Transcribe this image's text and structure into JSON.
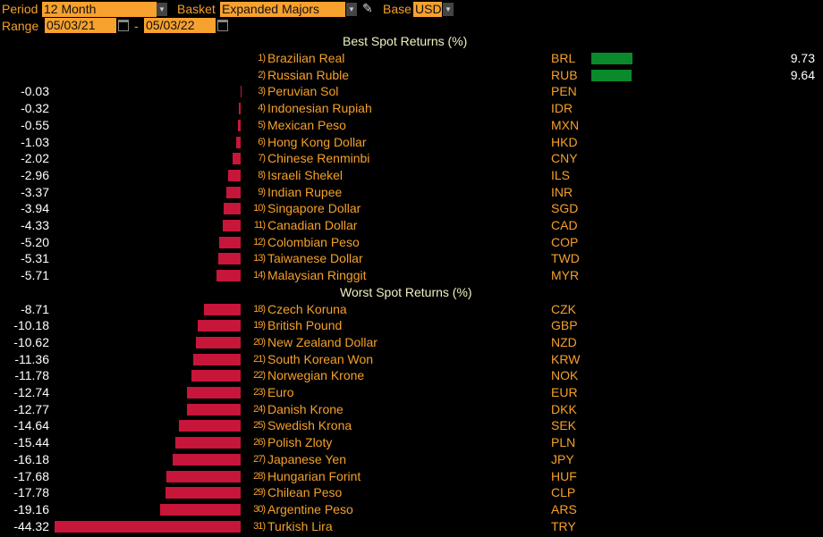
{
  "controls": {
    "period_label": "Period",
    "period_value": "12 Month",
    "basket_label": "Basket",
    "basket_value": "Expanded Majors",
    "base_label": "Base",
    "base_value": "USD",
    "range_label": "Range",
    "range_start": "05/03/21",
    "range_sep": "-",
    "range_end": "05/03/22"
  },
  "colors": {
    "positive": "#0a8a2a",
    "negative": "#c8153a",
    "accent": "#f7a12e"
  },
  "sections": [
    {
      "title": "Best Spot Returns (%)",
      "rows": [
        {
          "rank": "1)",
          "name": "Brazilian Real",
          "code": "BRL",
          "value": 9.73,
          "label": "9.73"
        },
        {
          "rank": "2)",
          "name": "Russian Ruble",
          "code": "RUB",
          "value": 9.64,
          "label": "9.64"
        },
        {
          "rank": "3)",
          "name": "Peruvian Sol",
          "code": "PEN",
          "value": -0.03,
          "label": "-0.03"
        },
        {
          "rank": "4)",
          "name": "Indonesian Rupiah",
          "code": "IDR",
          "value": -0.32,
          "label": "-0.32"
        },
        {
          "rank": "5)",
          "name": "Mexican Peso",
          "code": "MXN",
          "value": -0.55,
          "label": "-0.55"
        },
        {
          "rank": "6)",
          "name": "Hong Kong Dollar",
          "code": "HKD",
          "value": -1.03,
          "label": "-1.03"
        },
        {
          "rank": "7)",
          "name": "Chinese Renminbi",
          "code": "CNY",
          "value": -2.02,
          "label": "-2.02"
        },
        {
          "rank": "8)",
          "name": "Israeli Shekel",
          "code": "ILS",
          "value": -2.96,
          "label": "-2.96"
        },
        {
          "rank": "9)",
          "name": "Indian Rupee",
          "code": "INR",
          "value": -3.37,
          "label": "-3.37"
        },
        {
          "rank": "10)",
          "name": "Singapore Dollar",
          "code": "SGD",
          "value": -3.94,
          "label": "-3.94"
        },
        {
          "rank": "11)",
          "name": "Canadian Dollar",
          "code": "CAD",
          "value": -4.33,
          "label": "-4.33"
        },
        {
          "rank": "12)",
          "name": "Colombian Peso",
          "code": "COP",
          "value": -5.2,
          "label": "-5.20"
        },
        {
          "rank": "13)",
          "name": "Taiwanese Dollar",
          "code": "TWD",
          "value": -5.31,
          "label": "-5.31"
        },
        {
          "rank": "14)",
          "name": "Malaysian Ringgit",
          "code": "MYR",
          "value": -5.71,
          "label": "-5.71"
        }
      ]
    },
    {
      "title": "Worst Spot Returns (%)",
      "rows": [
        {
          "rank": "18)",
          "name": "Czech Koruna",
          "code": "CZK",
          "value": -8.71,
          "label": "-8.71"
        },
        {
          "rank": "19)",
          "name": "British Pound",
          "code": "GBP",
          "value": -10.18,
          "label": "-10.18"
        },
        {
          "rank": "20)",
          "name": "New Zealand Dollar",
          "code": "NZD",
          "value": -10.62,
          "label": "-10.62"
        },
        {
          "rank": "21)",
          "name": "South Korean Won",
          "code": "KRW",
          "value": -11.36,
          "label": "-11.36"
        },
        {
          "rank": "22)",
          "name": "Norwegian Krone",
          "code": "NOK",
          "value": -11.78,
          "label": "-11.78"
        },
        {
          "rank": "23)",
          "name": "Euro",
          "code": "EUR",
          "value": -12.74,
          "label": "-12.74"
        },
        {
          "rank": "24)",
          "name": "Danish Krone",
          "code": "DKK",
          "value": -12.77,
          "label": "-12.77"
        },
        {
          "rank": "25)",
          "name": "Swedish Krona",
          "code": "SEK",
          "value": -14.64,
          "label": "-14.64"
        },
        {
          "rank": "26)",
          "name": "Polish Zloty",
          "code": "PLN",
          "value": -15.44,
          "label": "-15.44"
        },
        {
          "rank": "27)",
          "name": "Japanese Yen",
          "code": "JPY",
          "value": -16.18,
          "label": "-16.18"
        },
        {
          "rank": "28)",
          "name": "Hungarian Forint",
          "code": "HUF",
          "value": -17.68,
          "label": "-17.68"
        },
        {
          "rank": "29)",
          "name": "Chilean Peso",
          "code": "CLP",
          "value": -17.78,
          "label": "-17.78"
        },
        {
          "rank": "30)",
          "name": "Argentine Peso",
          "code": "ARS",
          "value": -19.16,
          "label": "-19.16"
        },
        {
          "rank": "31)",
          "name": "Turkish Lira",
          "code": "TRY",
          "value": -44.32,
          "label": "-44.32"
        }
      ]
    }
  ]
}
